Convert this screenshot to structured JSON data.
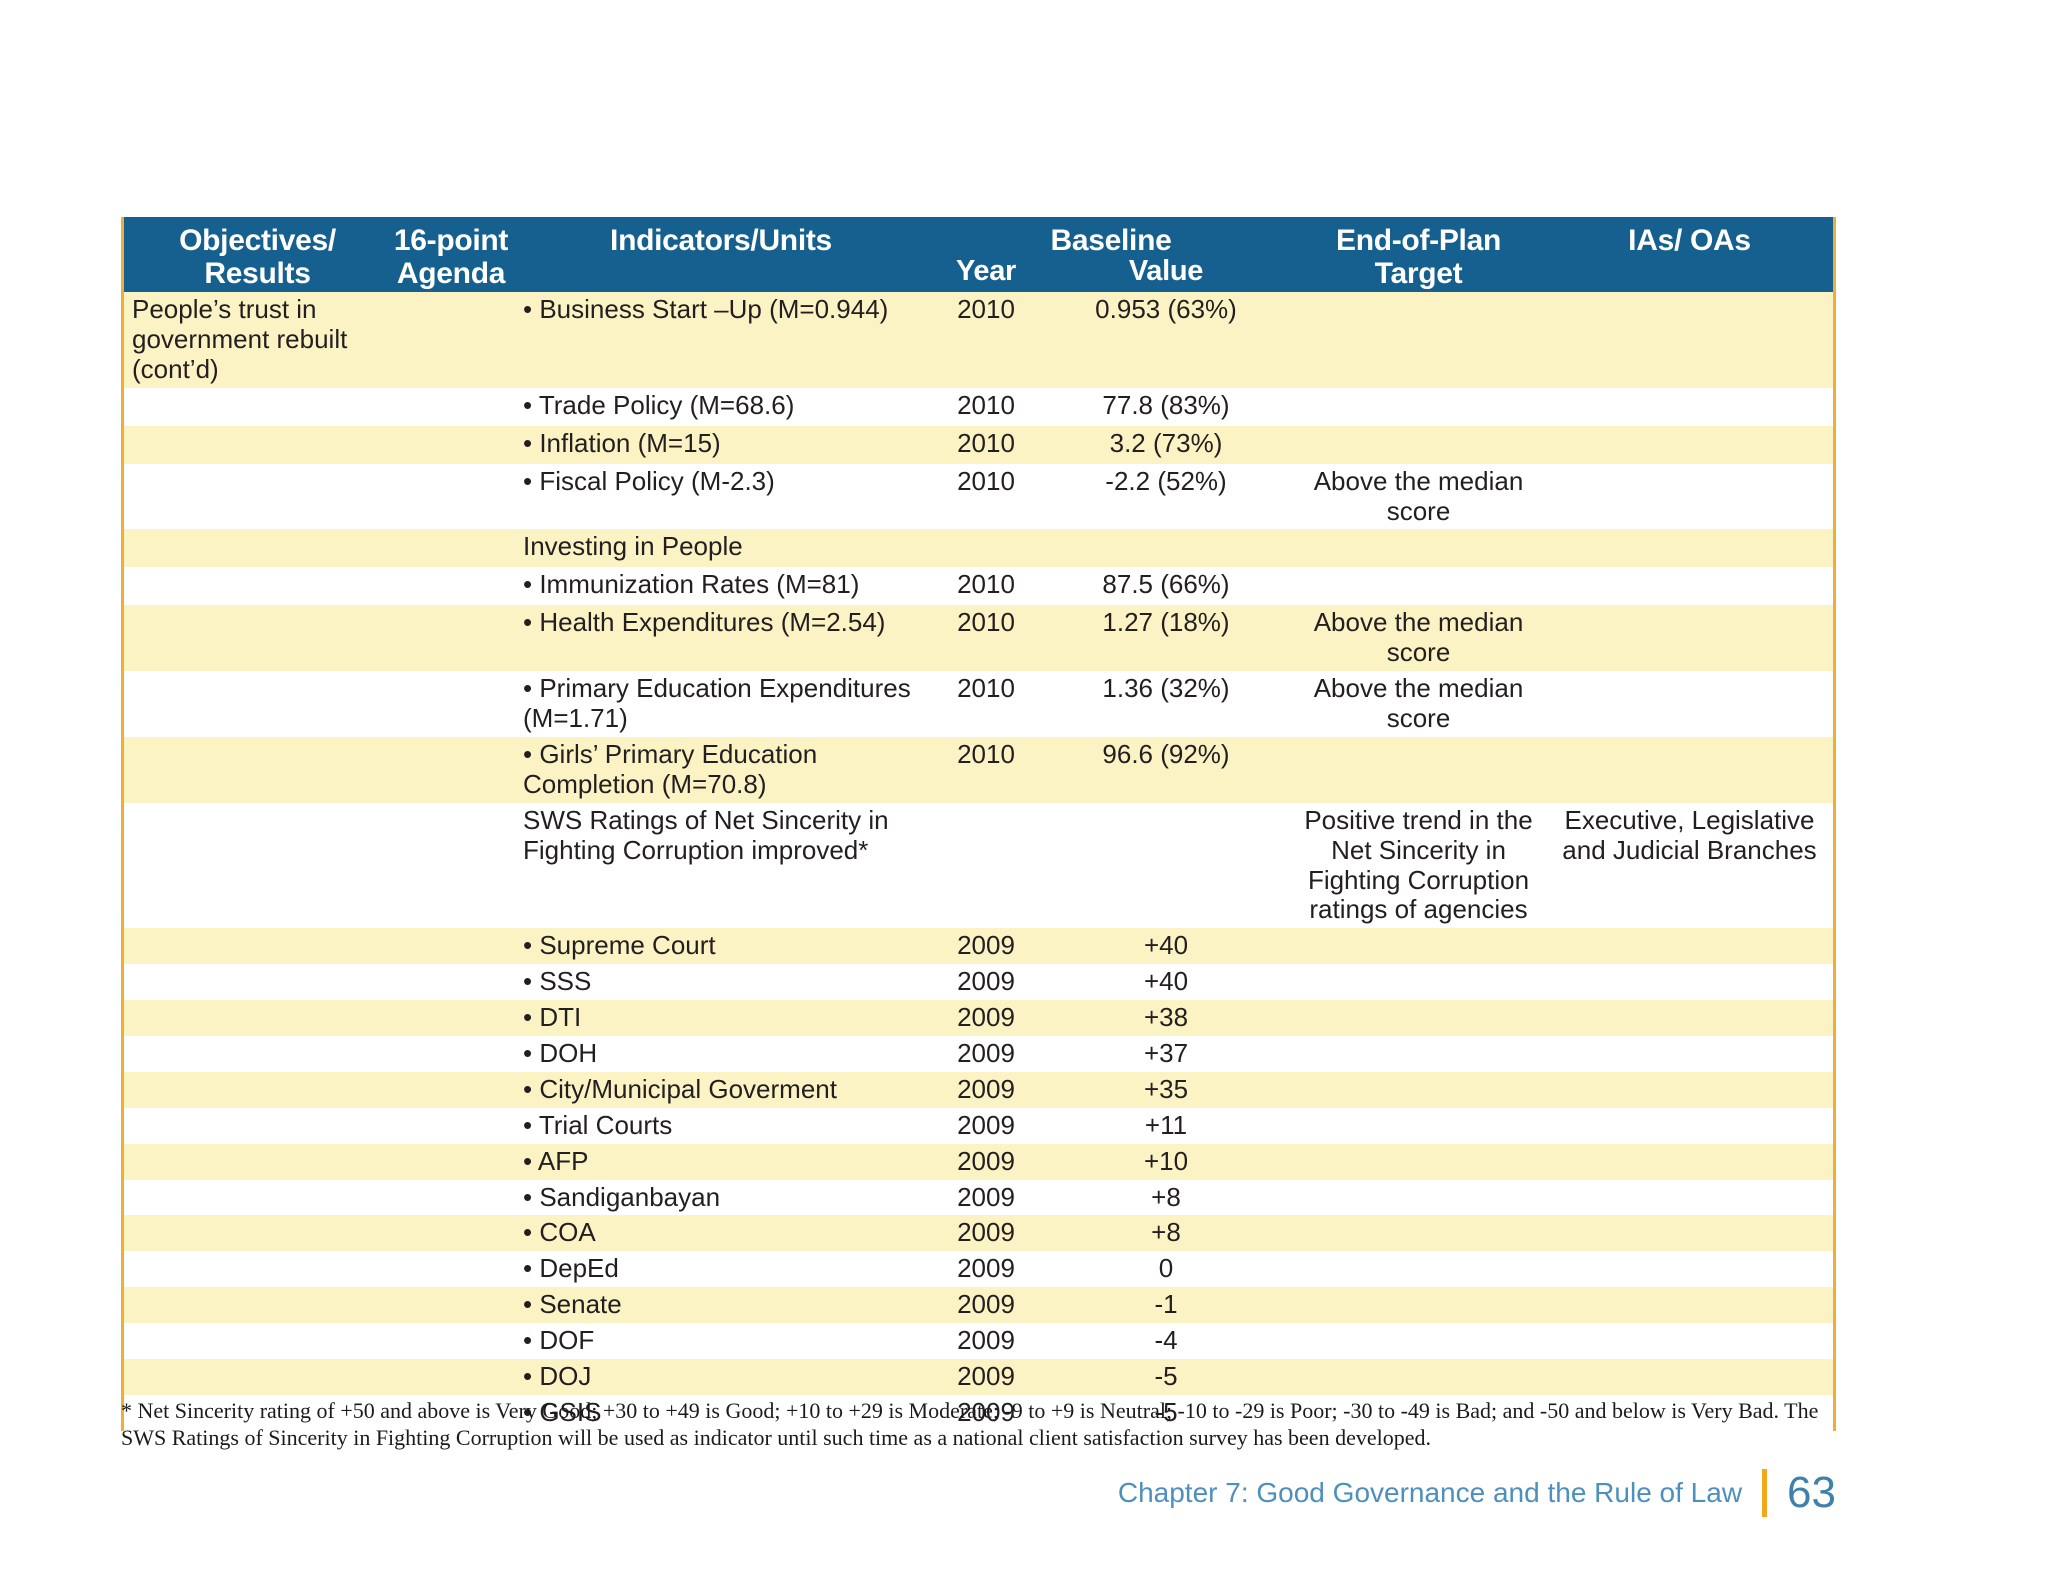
{
  "table": {
    "header": {
      "objectives_l1": "Objectives/",
      "objectives_l2": "Results",
      "agenda_l1": "16-point",
      "agenda_l2": "Agenda",
      "indicators": "Indicators/Units",
      "baseline": "Baseline",
      "year": "Year",
      "value": "Value",
      "target": "End-of-Plan Target",
      "ias": "IAs/ OAs"
    },
    "rows": [
      {
        "obj": "People’s trust in government rebuilt (cont’d)",
        "indicator": "• Business Start –Up (M=0.944)",
        "year": "2010",
        "value": "0.953 (63%)"
      },
      {
        "indicator": "• Trade Policy (M=68.6)",
        "year": "2010",
        "value": "77.8 (83%)"
      },
      {
        "indicator": "• Inflation (M=15)",
        "year": "2010",
        "value": "3.2 (73%)"
      },
      {
        "indicator": "• Fiscal Policy (M-2.3)",
        "year": "2010",
        "value": "-2.2 (52%)",
        "target": "Above the median score"
      },
      {
        "indicator": "Investing in People"
      },
      {
        "indicator": "• Immunization Rates (M=81)",
        "year": "2010",
        "value": "87.5 (66%)"
      },
      {
        "indicator": "• Health Expenditures (M=2.54)",
        "year": "2010",
        "value": "1.27 (18%)",
        "target": "Above the median score"
      },
      {
        "indicator": "• Primary Education Expenditures (M=1.71)",
        "year": "2010",
        "value": "1.36 (32%)",
        "target": "Above the median score"
      },
      {
        "indicator": "• Girls’ Primary Education Completion (M=70.8)",
        "year": "2010",
        "value": "96.6 (92%)"
      },
      {
        "indicator": "SWS Ratings of Net Sincerity in Fighting Corruption improved*",
        "target": "Positive trend in the Net Sincerity in Fighting Corruption ratings of agencies",
        "ias": "Executive, Legislative and Judicial Branches"
      },
      {
        "indicator": "• Supreme Court",
        "year": "2009",
        "value": "+40"
      },
      {
        "indicator": "• SSS",
        "year": "2009",
        "value": "+40"
      },
      {
        "indicator": "• DTI",
        "year": "2009",
        "value": "+38"
      },
      {
        "indicator": "• DOH",
        "year": "2009",
        "value": "+37"
      },
      {
        "indicator": "• City/Municipal Goverment",
        "year": "2009",
        "value": "+35"
      },
      {
        "indicator": "• Trial Courts",
        "year": "2009",
        "value": "+11"
      },
      {
        "indicator": "• AFP",
        "year": "2009",
        "value": "+10"
      },
      {
        "indicator": "• Sandiganbayan",
        "year": "2009",
        "value": "+8"
      },
      {
        "indicator": "• COA",
        "year": "2009",
        "value": "+8"
      },
      {
        "indicator": "• DepEd",
        "year": "2009",
        "value": "0"
      },
      {
        "indicator": "• Senate",
        "year": "2009",
        "value": "-1"
      },
      {
        "indicator": "• DOF",
        "year": "2009",
        "value": "-4"
      },
      {
        "indicator": "• DOJ",
        "year": "2009",
        "value": "-5"
      },
      {
        "indicator": "• GSIS",
        "year": "2009",
        "value": "-5"
      }
    ]
  },
  "footnote": "* Net Sincerity rating of +50 and above is Very Good; +30 to +49 is Good; +10 to +29 is Moderate; -9 to +9 is Neutral; -10 to -29 is Poor; -30 to -49 is Bad; and -50 and below is Very Bad. The SWS Ratings of Sincerity in Fighting Corruption will be used as indicator until such time as a national client satisfaction survey has been developed.",
  "footer": {
    "chapter": "Chapter 7: Good Governance and the Rule of Law",
    "page": "63"
  },
  "colors": {
    "header_bg": "#15608e",
    "row_yellow": "#fcf3c5",
    "accent_gold": "#eeaf3a",
    "footer_blue": "#4d8fbd",
    "page_number_blue": "#3f80ad",
    "footer_bar_orange": "#f2a71c"
  }
}
